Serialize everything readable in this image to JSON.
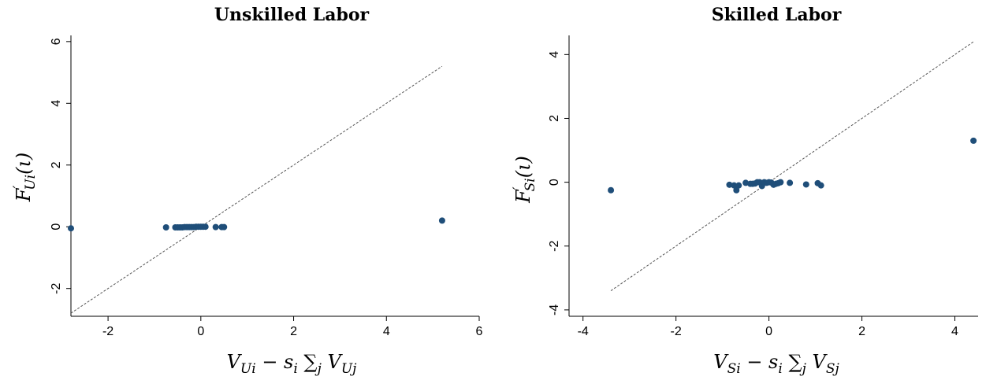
{
  "chart_data": [
    {
      "type": "scatter",
      "title": "Unskilled Labor",
      "xlabel": "V_{Ui} − s_i ∑_j V_{Uj}",
      "ylabel": "F'_{Ui}(ι)",
      "xlim": [
        -2.8,
        6.0
      ],
      "ylim": [
        -2.9,
        6.2
      ],
      "x_ticks": [
        -2,
        0,
        2,
        4,
        6
      ],
      "y_ticks": [
        -2,
        0,
        2,
        4,
        6
      ],
      "grid": false,
      "marker_color": "#1f4e79",
      "reference_line": {
        "style": "dashed",
        "from": [
          -2.8,
          -2.8
        ],
        "to": [
          5.2,
          5.2
        ]
      },
      "series": [
        {
          "points": [
            [
              -2.8,
              -0.05
            ],
            [
              -0.75,
              -0.02
            ],
            [
              -0.55,
              -0.02
            ],
            [
              -0.5,
              -0.02
            ],
            [
              -0.45,
              -0.02
            ],
            [
              -0.4,
              -0.02
            ],
            [
              -0.35,
              -0.01
            ],
            [
              -0.3,
              -0.01
            ],
            [
              -0.25,
              -0.01
            ],
            [
              -0.2,
              -0.01
            ],
            [
              -0.15,
              -0.01
            ],
            [
              -0.1,
              0.0
            ],
            [
              -0.05,
              0.0
            ],
            [
              0.0,
              0.0
            ],
            [
              0.05,
              0.0
            ],
            [
              0.1,
              0.0
            ],
            [
              0.32,
              -0.01
            ],
            [
              0.45,
              -0.01
            ],
            [
              0.5,
              -0.01
            ],
            [
              5.2,
              0.2
            ]
          ]
        }
      ]
    },
    {
      "type": "scatter",
      "title": "Skilled Labor",
      "xlabel": "V_{Si} − s_i ∑_j V_{Sj}",
      "ylabel": "F'_{Si}(ι)",
      "xlim": [
        -4.3,
        4.5
      ],
      "ylim": [
        -4.2,
        4.6
      ],
      "x_ticks": [
        -4,
        -2,
        0,
        2,
        4
      ],
      "y_ticks": [
        -4,
        -2,
        0,
        2,
        4
      ],
      "grid": false,
      "marker_color": "#1f4e79",
      "reference_line": {
        "style": "dashed",
        "from": [
          -3.4,
          -3.4
        ],
        "to": [
          4.4,
          4.4
        ]
      },
      "series": [
        {
          "points": [
            [
              -3.4,
              -0.25
            ],
            [
              -0.85,
              -0.08
            ],
            [
              -0.75,
              -0.1
            ],
            [
              -0.7,
              -0.25
            ],
            [
              -0.65,
              -0.1
            ],
            [
              -0.5,
              -0.02
            ],
            [
              -0.4,
              -0.05
            ],
            [
              -0.35,
              -0.05
            ],
            [
              -0.3,
              -0.04
            ],
            [
              -0.25,
              0.0
            ],
            [
              -0.2,
              0.0
            ],
            [
              -0.15,
              -0.12
            ],
            [
              -0.1,
              0.0
            ],
            [
              -0.05,
              -0.02
            ],
            [
              0.0,
              0.0
            ],
            [
              0.05,
              -0.01
            ],
            [
              0.1,
              -0.08
            ],
            [
              0.15,
              -0.05
            ],
            [
              0.2,
              -0.03
            ],
            [
              0.25,
              0.0
            ],
            [
              0.45,
              -0.02
            ],
            [
              0.8,
              -0.07
            ],
            [
              1.05,
              -0.03
            ],
            [
              1.12,
              -0.1
            ],
            [
              4.4,
              1.3
            ]
          ]
        }
      ]
    }
  ]
}
